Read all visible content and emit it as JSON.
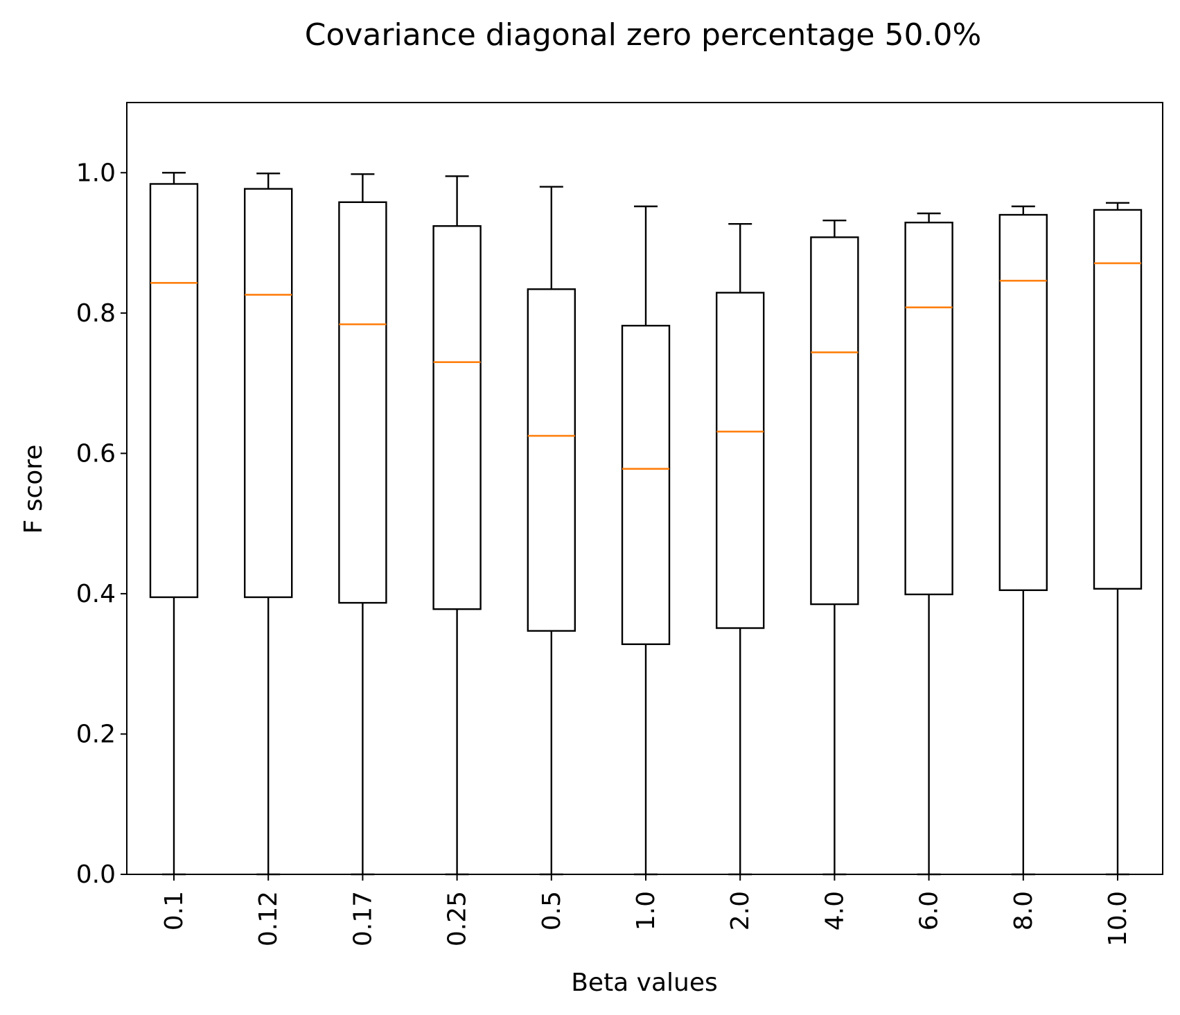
{
  "chart_data": {
    "type": "box",
    "title": "Covariance diagonal zero percentage 50.0%",
    "xlabel": "Beta values",
    "ylabel": "F score",
    "ylim": [
      0.0,
      1.1
    ],
    "yticks": [
      0.0,
      0.2,
      0.4,
      0.6,
      0.8,
      1.0
    ],
    "ytick_labels": [
      "0.0",
      "0.2",
      "0.4",
      "0.6",
      "0.8",
      "1.0"
    ],
    "grid": false,
    "colors": {
      "box": "#000000",
      "median": "#ff7f0e"
    },
    "categories": [
      "0.1",
      "0.12",
      "0.17",
      "0.25",
      "0.5",
      "1.0",
      "2.0",
      "4.0",
      "6.0",
      "8.0",
      "10.0"
    ],
    "boxes": [
      {
        "whislo": 0.0,
        "q1": 0.395,
        "med": 0.843,
        "q3": 0.984,
        "whishi": 1.0
      },
      {
        "whislo": 0.0,
        "q1": 0.395,
        "med": 0.826,
        "q3": 0.977,
        "whishi": 0.999
      },
      {
        "whislo": 0.0,
        "q1": 0.387,
        "med": 0.784,
        "q3": 0.958,
        "whishi": 0.998
      },
      {
        "whislo": 0.0,
        "q1": 0.378,
        "med": 0.73,
        "q3": 0.924,
        "whishi": 0.995
      },
      {
        "whislo": 0.0,
        "q1": 0.347,
        "med": 0.625,
        "q3": 0.834,
        "whishi": 0.98
      },
      {
        "whislo": 0.0,
        "q1": 0.328,
        "med": 0.578,
        "q3": 0.782,
        "whishi": 0.952
      },
      {
        "whislo": 0.0,
        "q1": 0.351,
        "med": 0.631,
        "q3": 0.829,
        "whishi": 0.927
      },
      {
        "whislo": 0.0,
        "q1": 0.385,
        "med": 0.744,
        "q3": 0.908,
        "whishi": 0.932
      },
      {
        "whislo": 0.0,
        "q1": 0.399,
        "med": 0.808,
        "q3": 0.929,
        "whishi": 0.942
      },
      {
        "whislo": 0.0,
        "q1": 0.405,
        "med": 0.846,
        "q3": 0.94,
        "whishi": 0.952
      },
      {
        "whislo": 0.0,
        "q1": 0.407,
        "med": 0.871,
        "q3": 0.947,
        "whishi": 0.957
      }
    ]
  }
}
